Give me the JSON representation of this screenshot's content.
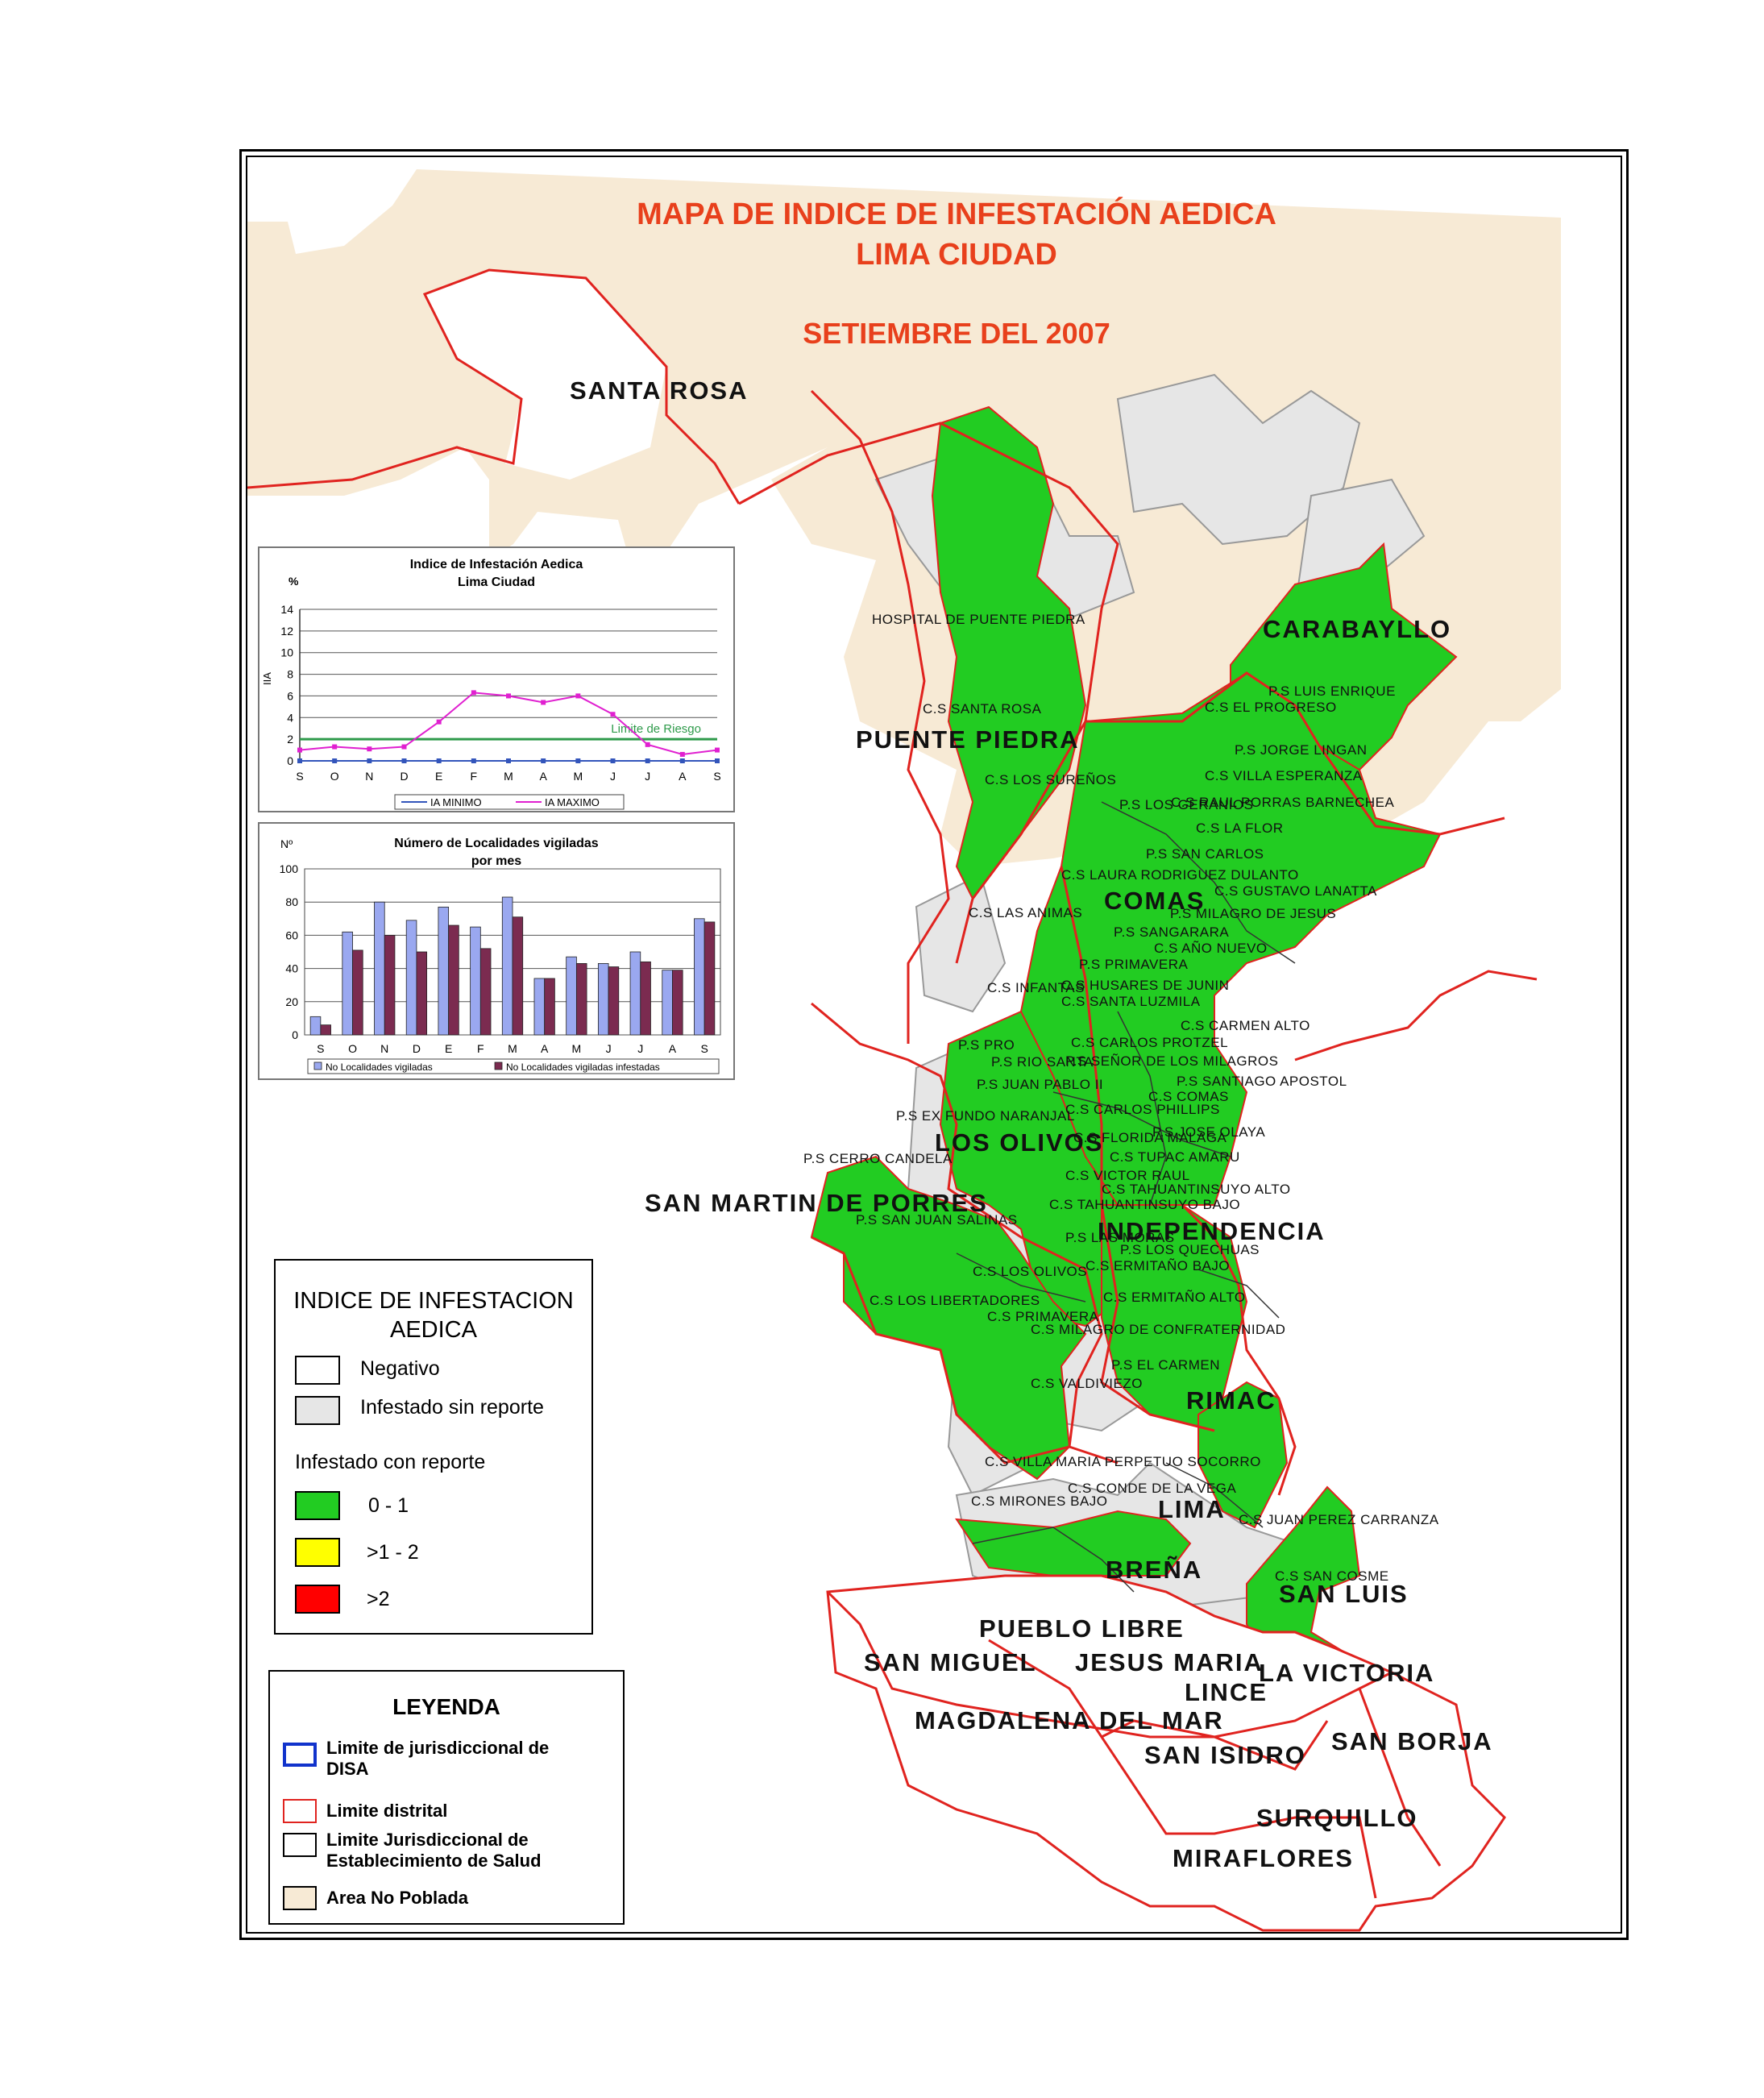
{
  "map": {
    "title_line1": "MAPA DE INDICE DE INFESTACIÓN AEDICA",
    "title_line2": "LIMA CIUDAD",
    "date": "SETIEMBRE DEL 2007"
  },
  "districts": [
    "SANTA ROSA",
    "CARABAYLLO",
    "PUENTE PIEDRA",
    "COMAS",
    "LOS OLIVOS",
    "SAN MARTIN DE PORRES",
    "INDEPENDENCIA",
    "RIMAC",
    "LIMA",
    "BREÑA",
    "SAN LUIS",
    "PUEBLO LIBRE",
    "SAN MIGUEL",
    "JESUS MARIA",
    "LA VICTORIA",
    "LINCE",
    "MAGDALENA DEL MAR",
    "SAN ISIDRO",
    "SAN BORJA",
    "SURQUILLO",
    "MIRAFLORES"
  ],
  "facilities": [
    "HOSPITAL DE PUENTE PIEDRA",
    "C.S SANTA ROSA",
    "C.S LOS SUREÑOS",
    "P.S LUIS ENRIQUE",
    "C.S EL PROGRESO",
    "P.S JORGE LINGAN",
    "C.S VILLA ESPERANZA",
    "P.S LOS GERANIOS",
    "C.S RAUL PORRAS BARNECHEA",
    "C.S LA FLOR",
    "P.S SAN CARLOS",
    "C.S LAURA RODRIGUEZ DULANTO",
    "C.S GUSTAVO LANATTA",
    "C.S LAS ANIMAS",
    "P.S MILAGRO DE JESUS",
    "P.S SANGARARA",
    "C.S AÑO NUEVO",
    "P.S PRIMAVERA",
    "C.S INFANTAS",
    "C.S HUSARES DE JUNIN",
    "C.S SANTA LUZMILA",
    "C.S CARMEN ALTO",
    "P.S PRO",
    "C.S CARLOS PROTZEL",
    "P.S RIO SANTA",
    "P.S SEÑOR DE LOS MILAGROS",
    "P.S JUAN PABLO II",
    "P.S SANTIAGO APOSTOL",
    "C.S COMAS",
    "C.S CARLOS PHILLIPS",
    "P.S EX FUNDO NARANJAL",
    "P.S JOSE OLAYA",
    "C.S FLORIDA MALAGA",
    "P.S CERRO CANDELA",
    "C.S TUPAC AMARU",
    "C.S VICTOR RAUL",
    "C.S TAHUANTINSUYO ALTO",
    "C.S TAHUANTINSUYO BAJO",
    "P.S SAN JUAN SALINAS",
    "P.S LAS MORAS",
    "P.S LOS QUECHUAS",
    "C.S LOS OLIVOS",
    "C.S ERMITAÑO BAJO",
    "C.S LOS LIBERTADORES",
    "C.S ERMITAÑO ALTO",
    "C.S PRIMAVERA",
    "C.S MILAGRO DE CONFRATERNIDAD",
    "P.S EL CARMEN",
    "C.S VALDIVIEZO",
    "C.S VILLA MARIA PERPETUO SOCORRO",
    "C.S CONDE DE LA VEGA",
    "C.S MIRONES BAJO",
    "C.S JUAN PEREZ CARRANZA",
    "C.S SAN COSME"
  ],
  "line_chart": {
    "title": "Indice de Infestación Aedica\nLima Ciudad",
    "title_line1": "Indice de Infestación Aedica",
    "title_line2": "Lima Ciudad",
    "unit": "%",
    "ylabel": "IIA",
    "ref_label": "Limite de Riesgo",
    "ref_value": 2,
    "legend_min": "IA MINIMO",
    "legend_max": "IA MAXIMO"
  },
  "bar_chart": {
    "title_line1": "Número de Localidades vigiladas",
    "title_line2": "por mes",
    "unit": "Nº",
    "legend_a": "No Localidades vigiladas",
    "legend_b": "No Localidades vigiladas infestadas"
  },
  "chart_data": [
    {
      "type": "line",
      "title": "Indice de Infestación Aedica Lima Ciudad",
      "ylabel": "IIA",
      "categories": [
        "S",
        "O",
        "N",
        "D",
        "E",
        "F",
        "M",
        "A",
        "M",
        "J",
        "J",
        "A",
        "S"
      ],
      "ylim": [
        0,
        14
      ],
      "yticks": [
        0,
        2,
        4,
        6,
        8,
        10,
        12,
        14
      ],
      "grid": true,
      "series": [
        {
          "name": "IA MINIMO",
          "values": [
            0,
            0,
            0,
            0,
            0,
            0,
            0,
            0,
            0,
            0,
            0,
            0,
            0
          ],
          "color": "#3355bb"
        },
        {
          "name": "IA MAXIMO",
          "values": [
            1.0,
            1.3,
            1.1,
            1.3,
            3.6,
            6.3,
            6.0,
            5.4,
            6.0,
            4.3,
            1.5,
            0.6,
            1.0
          ],
          "color": "#e020d0"
        }
      ],
      "reference_line": {
        "label": "Limite de Riesgo",
        "value": 2,
        "color": "#2e9a4a"
      }
    },
    {
      "type": "bar",
      "title": "Número de Localidades vigiladas por mes",
      "categories": [
        "S",
        "O",
        "N",
        "D",
        "E",
        "F",
        "M",
        "A",
        "M",
        "J",
        "J",
        "A",
        "S"
      ],
      "ylim": [
        0,
        100
      ],
      "yticks": [
        0,
        20,
        40,
        60,
        80,
        100
      ],
      "grid": true,
      "series": [
        {
          "name": "No Localidades vigiladas",
          "values": [
            11,
            62,
            80,
            69,
            77,
            65,
            83,
            34,
            47,
            43,
            50,
            39,
            70
          ],
          "color": "#9aa8f0"
        },
        {
          "name": "No Localidades vigiladas infestadas",
          "values": [
            6,
            51,
            60,
            50,
            66,
            52,
            71,
            34,
            43,
            41,
            44,
            39,
            68
          ],
          "color": "#7b2b50"
        }
      ]
    }
  ],
  "legend_index": {
    "title_line1": "INDICE DE INFESTACION",
    "title_line2": "AEDICA",
    "negativo": "Negativo",
    "infestado_sin": "Infestado sin reporte",
    "infestado_con": "Infestado con reporte",
    "r1": "0 - 1",
    "r2": ">1 - 2",
    "r3": ">2",
    "color_green": "#22cc22",
    "color_yellow": "#ffff00",
    "color_red": "#ff0000",
    "color_grey": "#e6e6e6"
  },
  "legend_main": {
    "title": "LEYENDA",
    "disa_line1": "Limite de jurisdiccional de",
    "disa_line2": "DISA",
    "distrital": "Limite distrital",
    "est_line1": "Limite Jurisdiccional de",
    "est_line2": "Establecimiento de Salud",
    "no_poblada": "Area No Poblada",
    "color_disa": "#1133cc",
    "color_distrital": "#e0231f",
    "color_no_poblada": "#f7ead5"
  },
  "colors": {
    "title": "#e8401c",
    "green": "#22cc22",
    "unpopulated": "#f7ead5",
    "grey": "#e6e6e6",
    "district_border": "#e0231f"
  }
}
